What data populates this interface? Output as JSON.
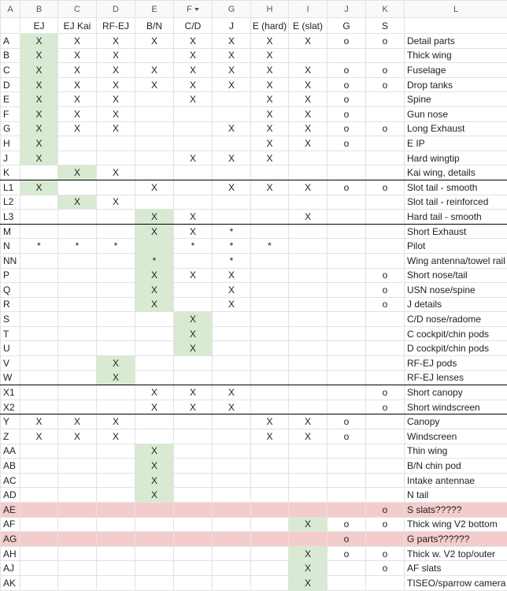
{
  "table": {
    "column_letters": [
      "A",
      "B",
      "C",
      "D",
      "E",
      "F",
      "G",
      "H",
      "I",
      "J",
      "K",
      "L"
    ],
    "headers": [
      "EJ",
      "EJ Kai",
      "RF-EJ",
      "B/N",
      "C/D",
      "J",
      "E (hard)",
      "E (slat)",
      "G",
      "S"
    ],
    "rows": [
      {
        "label": "A",
        "cells": [
          "X",
          "X",
          "X",
          "X",
          "X",
          "X",
          "X",
          "X",
          "o",
          "o"
        ],
        "description": "Detail parts"
      },
      {
        "label": "B",
        "cells": [
          "X",
          "X",
          "X",
          null,
          "X",
          "X",
          "X",
          null,
          null,
          null
        ],
        "description": "Thick wing"
      },
      {
        "label": "C",
        "cells": [
          "X",
          "X",
          "X",
          "X",
          "X",
          "X",
          "X",
          "X",
          "o",
          "o"
        ],
        "description": "Fuselage"
      },
      {
        "label": "D",
        "cells": [
          "X",
          "X",
          "X",
          "X",
          "X",
          "X",
          "X",
          "X",
          "o",
          "o"
        ],
        "description": "Drop tanks"
      },
      {
        "label": "E",
        "cells": [
          "X",
          "X",
          "X",
          null,
          "X",
          null,
          "X",
          "X",
          "o",
          null
        ],
        "description": "Spine"
      },
      {
        "label": "F",
        "cells": [
          "X",
          "X",
          "X",
          null,
          null,
          null,
          "X",
          "X",
          "o",
          null
        ],
        "description": "Gun nose"
      },
      {
        "label": "G",
        "cells": [
          "X",
          "X",
          "X",
          null,
          null,
          "X",
          "X",
          "X",
          "o",
          "o"
        ],
        "description": "Long Exhaust"
      },
      {
        "label": "H",
        "cells": [
          "X",
          null,
          null,
          null,
          null,
          null,
          "X",
          "X",
          "o",
          null
        ],
        "description": "E IP"
      },
      {
        "label": "J",
        "cells": [
          "X",
          null,
          null,
          null,
          "X",
          "X",
          "X",
          null,
          null,
          null
        ],
        "description": "Hard wingtip"
      },
      {
        "label": "K",
        "cells": [
          null,
          "X",
          "X",
          null,
          null,
          null,
          null,
          null,
          null,
          null
        ],
        "description": "Kai wing, details"
      },
      {
        "label": "L1",
        "cells": [
          "X",
          null,
          null,
          "X",
          null,
          "X",
          "X",
          "X",
          "o",
          "o"
        ],
        "description": "Slot tail - smooth"
      },
      {
        "label": "L2",
        "cells": [
          null,
          "X",
          "X",
          null,
          null,
          null,
          null,
          null,
          null,
          null
        ],
        "description": "Slot tail - reinforced"
      },
      {
        "label": "L3",
        "cells": [
          null,
          null,
          null,
          "X",
          "X",
          null,
          null,
          "X",
          null,
          null
        ],
        "description": "Hard tail - smooth"
      },
      {
        "label": "M",
        "cells": [
          null,
          null,
          null,
          "X",
          "X",
          "*",
          null,
          null,
          null,
          null
        ],
        "description": "Short Exhaust"
      },
      {
        "label": "N",
        "cells": [
          "*",
          "*",
          "*",
          null,
          "*",
          "*",
          "*",
          null,
          null,
          null
        ],
        "description": "Pilot"
      },
      {
        "label": "NN",
        "cells": [
          null,
          null,
          null,
          "*",
          null,
          "*",
          null,
          null,
          null,
          null
        ],
        "description": "Wing antenna/towel rail"
      },
      {
        "label": "P",
        "cells": [
          null,
          null,
          null,
          "X",
          "X",
          "X",
          null,
          null,
          null,
          "o"
        ],
        "description": "Short nose/tail"
      },
      {
        "label": "Q",
        "cells": [
          null,
          null,
          null,
          "X",
          null,
          "X",
          null,
          null,
          null,
          "o"
        ],
        "description": "USN nose/spine"
      },
      {
        "label": "R",
        "cells": [
          null,
          null,
          null,
          "X",
          null,
          "X",
          null,
          null,
          null,
          "o"
        ],
        "description": "J details"
      },
      {
        "label": "S",
        "cells": [
          null,
          null,
          null,
          null,
          "X",
          null,
          null,
          null,
          null,
          null
        ],
        "description": "C/D nose/radome"
      },
      {
        "label": "T",
        "cells": [
          null,
          null,
          null,
          null,
          "X",
          null,
          null,
          null,
          null,
          null
        ],
        "description": "C cockpit/chin pods"
      },
      {
        "label": "U",
        "cells": [
          null,
          null,
          null,
          null,
          "X",
          null,
          null,
          null,
          null,
          null
        ],
        "description": "D cockpit/chin pods"
      },
      {
        "label": "V",
        "cells": [
          null,
          null,
          "X",
          null,
          null,
          null,
          null,
          null,
          null,
          null
        ],
        "description": "RF-EJ pods"
      },
      {
        "label": "W",
        "cells": [
          null,
          null,
          "X",
          null,
          null,
          null,
          null,
          null,
          null,
          null
        ],
        "description": "RF-EJ lenses"
      },
      {
        "label": "X1",
        "cells": [
          null,
          null,
          null,
          "X",
          "X",
          "X",
          null,
          null,
          null,
          "o"
        ],
        "description": "Short canopy"
      },
      {
        "label": "X2",
        "cells": [
          null,
          null,
          null,
          "X",
          "X",
          "X",
          null,
          null,
          null,
          "o"
        ],
        "description": "Short windscreen"
      },
      {
        "label": "Y",
        "cells": [
          "X",
          "X",
          "X",
          null,
          null,
          null,
          "X",
          "X",
          "o",
          null
        ],
        "description": "Canopy"
      },
      {
        "label": "Z",
        "cells": [
          "X",
          "X",
          "X",
          null,
          null,
          null,
          "X",
          "X",
          "o",
          null
        ],
        "description": "Windscreen"
      },
      {
        "label": "AA",
        "cells": [
          null,
          null,
          null,
          "X",
          null,
          null,
          null,
          null,
          null,
          null
        ],
        "description": "Thin wing"
      },
      {
        "label": "AB",
        "cells": [
          null,
          null,
          null,
          "X",
          null,
          null,
          null,
          null,
          null,
          null
        ],
        "description": "B/N chin pod"
      },
      {
        "label": "AC",
        "cells": [
          null,
          null,
          null,
          "X",
          null,
          null,
          null,
          null,
          null,
          null
        ],
        "description": "Intake antennae"
      },
      {
        "label": "AD",
        "cells": [
          null,
          null,
          null,
          "X",
          null,
          null,
          null,
          null,
          null,
          null
        ],
        "description": "N tail"
      },
      {
        "label": "AE",
        "cells": [
          null,
          null,
          null,
          null,
          null,
          null,
          null,
          null,
          null,
          "o"
        ],
        "description": "S slats?????"
      },
      {
        "label": "AF",
        "cells": [
          null,
          null,
          null,
          null,
          null,
          null,
          null,
          "X",
          "o",
          "o"
        ],
        "description": "Thick wing V2 bottom"
      },
      {
        "label": "AG",
        "cells": [
          null,
          null,
          null,
          null,
          null,
          null,
          null,
          null,
          "o",
          null
        ],
        "description": "G parts??????"
      },
      {
        "label": "AH",
        "cells": [
          null,
          null,
          null,
          null,
          null,
          null,
          null,
          "X",
          "o",
          "o"
        ],
        "description": "Thick w. V2 top/outer"
      },
      {
        "label": "AJ",
        "cells": [
          null,
          null,
          null,
          null,
          null,
          null,
          null,
          "X",
          null,
          "o"
        ],
        "description": "AF slats"
      },
      {
        "label": "AK",
        "cells": [
          null,
          null,
          null,
          null,
          null,
          null,
          null,
          "X",
          null,
          null
        ],
        "description": "TISEO/sparrow camera"
      }
    ]
  }
}
